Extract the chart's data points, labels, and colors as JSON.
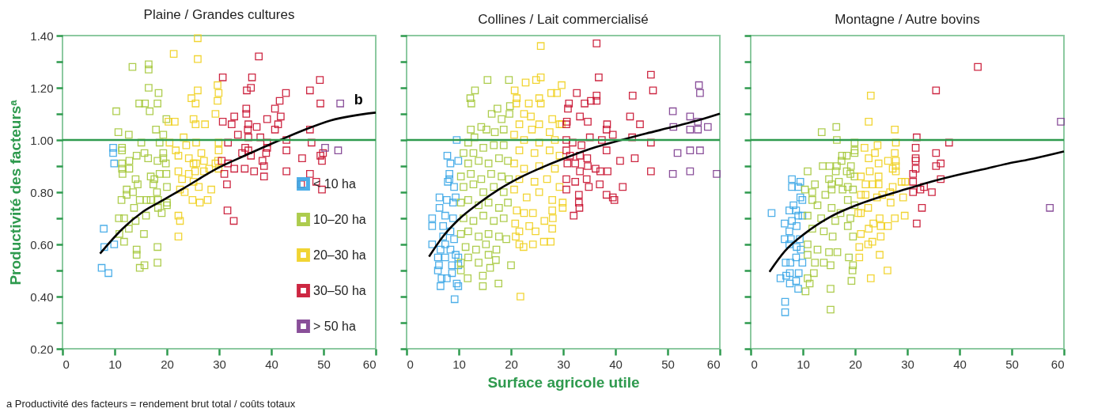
{
  "chart_data": [
    {
      "type": "scatter",
      "title": "Plaine / Grandes cultures",
      "ylabel": "Productivité des facteursᵃ",
      "marker": "square",
      "legend": "bottom right",
      "xlim": [
        0,
        60
      ],
      "xticks": [
        0,
        10,
        20,
        30,
        40,
        50,
        60
      ],
      "ylim": [
        0.2,
        1.4
      ],
      "yticks": [
        {
          "value": 0.2,
          "label": "0.20"
        },
        {
          "value": 0.3,
          "label": null
        },
        {
          "value": 0.4,
          "label": "0.40"
        },
        {
          "value": 0.5,
          "label": null
        },
        {
          "value": 0.6,
          "label": "0.60"
        },
        {
          "value": 0.7,
          "label": null
        },
        {
          "value": 0.8,
          "label": "0.80"
        },
        {
          "value": 0.9,
          "label": null
        },
        {
          "value": 1.0,
          "label": "1.00"
        },
        {
          "value": 1.1,
          "label": null
        },
        {
          "value": 1.2,
          "label": "1.20"
        },
        {
          "value": 1.3,
          "label": null
        },
        {
          "value": 1.4,
          "label": "1.40"
        }
      ],
      "ref_lines": [
        {
          "axis": "y",
          "value": 1.0,
          "color": "#2e9a4e"
        }
      ],
      "annotations": [
        {
          "text": "b",
          "x": 57,
          "y": 1.09
        },
        "a Productivité des facteurs = rendement brut total / coûts totaux"
      ],
      "series": [
        {
          "name": "< 10 ha",
          "color": "#3aa6e6",
          "x": [
            9.7,
            9.7,
            9.9,
            7.9,
            8.0,
            9.9,
            7.5,
            8.8
          ],
          "values": [
            0.97,
            0.95,
            0.91,
            0.66,
            0.59,
            0.6,
            0.51,
            0.49
          ]
        },
        {
          "name": "10–20 ha",
          "color": "#a5c73b",
          "x": [
            10.3,
            10.7,
            12.7,
            13.4,
            16.5,
            16.5,
            16.5,
            18.4,
            14.7,
            15.8,
            16.7,
            18.2,
            11.4,
            11.4,
            15.1,
            12.8,
            14.2,
            15.7,
            16.4,
            11.4,
            11.4,
            11.5,
            12.8,
            12.3,
            12.3,
            11.3,
            11.8,
            10.8,
            10.9,
            11.8,
            13.5,
            14.0,
            14.4,
            14.8,
            13.7,
            14.0,
            12.7,
            14.2,
            14.2,
            14.8,
            15.7,
            15.6,
            16.0,
            16.9,
            17.4,
            18.1,
            18.3,
            19.0,
            18.3,
            18.6,
            18.2,
            17.9,
            18.6,
            19.3,
            19.9,
            19.8,
            19.9,
            20.0,
            20.0,
            20.0,
            18.2,
            18.2,
            16.1,
            16.9,
            17.6,
            19.3,
            19.3
          ],
          "values": [
            1.11,
            1.03,
            1.02,
            1.28,
            1.29,
            1.27,
            1.2,
            1.18,
            1.14,
            1.14,
            1.11,
            1.14,
            0.97,
            0.96,
            0.99,
            0.92,
            0.94,
            0.95,
            0.93,
            0.91,
            0.89,
            0.87,
            0.89,
            0.81,
            0.79,
            0.77,
            0.7,
            0.7,
            0.64,
            0.61,
            0.8,
            0.85,
            0.83,
            0.77,
            0.74,
            0.69,
            0.66,
            0.58,
            0.56,
            0.51,
            0.52,
            0.64,
            0.71,
            0.86,
            0.83,
            0.8,
            0.77,
            0.72,
            0.74,
            0.87,
            0.92,
            1.04,
            0.99,
            1.02,
            1.08,
            0.91,
            0.87,
            0.82,
            0.76,
            0.75,
            0.59,
            0.53,
            0.77,
            0.77,
            0.85,
            0.95,
            0.93
          ]
        },
        {
          "name": "20–30 ha",
          "color": "#f0d01e",
          "x": [
            25.9,
            25.9,
            21.3,
            29.7,
            29.9,
            29.7,
            25.9,
            24.7,
            25.5,
            29.3,
            25.1,
            25.5,
            27.3,
            20.3,
            21.5,
            20.5,
            21.7,
            22.2,
            23.2,
            23.7,
            25.6,
            26.6,
            24.2,
            25.1,
            27.1,
            28.1,
            29.9,
            29.9,
            29.8,
            29.9,
            22.2,
            22.9,
            24.2,
            25.1,
            26.1,
            23.4,
            22.5,
            24.9,
            26.3,
            27.8,
            28.5,
            22.2,
            22.5,
            22.2,
            27.1,
            25.4,
            25.6,
            29.3
          ],
          "values": [
            1.39,
            1.31,
            1.33,
            1.21,
            1.18,
            1.15,
            1.19,
            1.16,
            1.14,
            1.1,
            1.08,
            1.06,
            1.06,
            1.07,
            1.07,
            0.99,
            0.96,
            0.94,
            1.01,
            0.98,
            0.99,
            0.95,
            0.93,
            0.91,
            0.92,
            0.89,
            0.99,
            0.96,
            0.92,
            0.89,
            0.88,
            0.85,
            0.87,
            0.84,
            0.82,
            0.8,
            0.81,
            0.77,
            0.76,
            0.77,
            0.81,
            0.71,
            0.69,
            0.63,
            0.88,
            0.88,
            0.91,
            0.91
          ]
        },
        {
          "name": "30–50 ha",
          "color": "#c8102e",
          "x": [
            37.6,
            30.7,
            36.3,
            36.1,
            35.3,
            42.8,
            41.6,
            40.7,
            41.8,
            47.4,
            49.3,
            49.4,
            35.2,
            35.2,
            32.9,
            30.7,
            32.4,
            35.6,
            37.2,
            39.2,
            41.3,
            40.7,
            33.6,
            35.5,
            35.6,
            37.9,
            31.7,
            39.2,
            42.9,
            47.4,
            47.7,
            35.0,
            35.6,
            42.9,
            39.2,
            34.4,
            36.1,
            39.0,
            45.9,
            49.4,
            49.7,
            49.9,
            30.5,
            31.7,
            32.9,
            34.9,
            36.7,
            38.3,
            38.6,
            38.6,
            31.0,
            31.5,
            42.9,
            45.7,
            47.4,
            48.6,
            49.7,
            31.6,
            32.8
          ],
          "values": [
            1.32,
            1.24,
            1.24,
            1.2,
            1.19,
            1.18,
            1.15,
            1.12,
            1.09,
            1.19,
            1.23,
            1.14,
            1.12,
            1.1,
            1.09,
            1.07,
            1.06,
            1.06,
            1.05,
            1.08,
            1.06,
            1.04,
            1.02,
            1.04,
            1.01,
            1.01,
            0.99,
            0.99,
            1.0,
            1.04,
            0.99,
            0.97,
            0.96,
            0.96,
            0.97,
            0.95,
            0.94,
            0.95,
            0.93,
            0.94,
            0.92,
            0.95,
            0.92,
            0.91,
            0.89,
            0.89,
            0.88,
            0.92,
            0.9,
            0.86,
            0.87,
            0.83,
            0.88,
            0.83,
            0.87,
            0.84,
            0.81,
            0.73,
            0.69
          ]
        },
        {
          "name": "> 50 ha",
          "color": "#7d3c8f",
          "x": [
            53.2,
            50.3,
            52.8
          ],
          "values": [
            1.14,
            0.97,
            0.96
          ]
        },
        {
          "type": "line",
          "marker": "none",
          "color": "#000000",
          "x": [
            7.2,
            11.5,
            15.4,
            19.3,
            23.2,
            30.0,
            34.9,
            41.7,
            46.5,
            51.4,
            60
          ],
          "values": [
            0.565,
            0.66,
            0.725,
            0.77,
            0.815,
            0.895,
            0.94,
            1.0,
            1.04,
            1.075,
            1.105
          ]
        }
      ]
    },
    {
      "type": "scatter",
      "title": "Collines / Lait commercialisé",
      "xlabel": "Surface agricole utile",
      "marker": "square",
      "tick_labels": "x",
      "xlim": [
        0,
        60
      ],
      "xticks": [
        0,
        10,
        20,
        30,
        40,
        50,
        60
      ],
      "ylim": [
        0.2,
        1.4
      ],
      "yticks": [
        0.2,
        0.3,
        0.4,
        0.5,
        0.6,
        0.7,
        0.8,
        0.9,
        1.0,
        1.1,
        1.2,
        1.3,
        1.4
      ],
      "ref_lines": [
        {
          "axis": "y",
          "value": 1.0,
          "color": "#2e9a4e"
        }
      ],
      "series": [
        {
          "color": "#3aa6e6",
          "x": [
            9.6,
            7.8,
            8.4,
            9.9,
            8.2,
            7.9,
            9.1,
            6.3,
            7.7,
            8.9,
            6.3,
            7.4,
            4.9,
            4.9,
            7.0,
            8.4,
            9.1,
            4.9,
            7.4,
            6.5,
            8.4,
            9.4,
            6.0,
            7.4,
            9.9,
            6.2,
            6.0,
            8.7,
            9.9,
            8.7,
            6.7,
            7.7,
            6.5,
            9.6,
            9.9,
            9.2,
            8.9,
            7.0,
            9.4,
            8.2
          ],
          "values": [
            1.0,
            0.94,
            0.91,
            0.92,
            0.87,
            0.84,
            0.82,
            0.78,
            0.77,
            0.76,
            0.74,
            0.71,
            0.7,
            0.67,
            0.67,
            0.65,
            0.62,
            0.6,
            0.6,
            0.58,
            0.58,
            0.56,
            0.55,
            0.55,
            0.55,
            0.52,
            0.5,
            0.52,
            0.52,
            0.49,
            0.47,
            0.47,
            0.44,
            0.45,
            0.44,
            0.39,
            0.7,
            0.63,
            0.78,
            0.85
          ]
        },
        {
          "color": "#a5c73b",
          "x": [
            15.5,
            19.6,
            13.1,
            12.2,
            12.4,
            17.4,
            16.3,
            19.8,
            19.7,
            18.2,
            14.3,
            12.3,
            15.3,
            16.9,
            18.6,
            13.0,
            11.8,
            10.9,
            12.8,
            14.7,
            16.7,
            18.6,
            11.8,
            13.8,
            15.7,
            17.7,
            19.4,
            10.4,
            12.3,
            14.3,
            16.2,
            18.2,
            19.6,
            10.9,
            12.8,
            14.7,
            16.7,
            18.6,
            10.4,
            11.8,
            13.8,
            15.7,
            17.7,
            19.4,
            10.9,
            12.8,
            14.7,
            16.7,
            18.6,
            10.4,
            11.8,
            13.8,
            15.7,
            17.7,
            19.1,
            11.3,
            13.3,
            15.2,
            17.2,
            11.8,
            13.8,
            15.7,
            17.1,
            10.4,
            11.7,
            14.6,
            14.6,
            17.6,
            20.0,
            16.0,
            10.4
          ],
          "values": [
            1.23,
            1.23,
            1.19,
            1.16,
            1.14,
            1.12,
            1.1,
            1.13,
            1.1,
            1.08,
            1.05,
            1.04,
            1.04,
            1.03,
            1.04,
            1.01,
            0.99,
            0.95,
            0.95,
            0.97,
            0.98,
            0.98,
            0.91,
            0.92,
            0.91,
            0.93,
            0.92,
            0.86,
            0.87,
            0.85,
            0.87,
            0.86,
            0.85,
            0.82,
            0.83,
            0.8,
            0.82,
            0.8,
            0.76,
            0.77,
            0.75,
            0.76,
            0.74,
            0.76,
            0.7,
            0.69,
            0.71,
            0.69,
            0.7,
            0.64,
            0.65,
            0.63,
            0.64,
            0.63,
            0.62,
            0.59,
            0.58,
            0.6,
            0.58,
            0.55,
            0.53,
            0.56,
            0.54,
            0.53,
            0.47,
            0.48,
            0.44,
            0.45,
            0.52,
            0.51,
            0.5
          ]
        },
        {
          "color": "#f0d01e",
          "x": [
            25.7,
            25.7,
            24.8,
            22.8,
            29.7,
            20.7,
            27.7,
            28.8,
            21.1,
            25.4,
            23.4,
            25.7,
            21.0,
            22.5,
            23.8,
            27.9,
            29.3,
            21.6,
            25.4,
            24.0,
            27.4,
            20.6,
            22.5,
            25.4,
            28.4,
            21.6,
            24.5,
            27.4,
            29.3,
            20.6,
            22.5,
            25.4,
            28.4,
            21.6,
            24.5,
            26.9,
            29.3,
            20.6,
            23.0,
            25.4,
            27.9,
            29.9,
            21.1,
            22.5,
            24.2,
            27.9,
            20.8,
            23.5,
            26.4,
            28.0,
            21.6,
            24.7,
            27.9,
            20.9,
            26.3,
            27.6,
            24.2,
            21.6,
            22.4,
            21.8,
            29.9,
            29.7
          ],
          "values": [
            1.36,
            1.24,
            1.23,
            1.22,
            1.21,
            1.19,
            1.18,
            1.18,
            1.16,
            1.16,
            1.14,
            1.14,
            1.14,
            1.1,
            1.09,
            1.08,
            1.06,
            1.06,
            1.06,
            1.04,
            1.03,
            1.02,
            1.0,
            0.99,
            1.0,
            0.96,
            0.95,
            0.96,
            0.94,
            0.91,
            0.89,
            0.9,
            0.89,
            0.85,
            0.84,
            0.85,
            0.82,
            0.81,
            0.78,
            0.8,
            0.77,
            0.74,
            0.73,
            0.72,
            0.72,
            0.73,
            0.68,
            0.67,
            0.69,
            0.7,
            0.65,
            0.65,
            0.66,
            0.63,
            0.61,
            0.61,
            0.6,
            0.6,
            0.59,
            0.4,
            0.76,
            1.06
          ]
        },
        {
          "color": "#c8102e",
          "x": [
            36.4,
            36.8,
            46.8,
            47.2,
            32.6,
            31.1,
            30.9,
            34.1,
            35.3,
            36.4,
            36.4,
            43.3,
            33.2,
            34.7,
            38.4,
            42.8,
            44.7,
            30.7,
            30.6,
            38.3,
            39.5,
            43.2,
            30.6,
            35.1,
            37.4,
            31.8,
            33.5,
            46.8,
            38.3,
            30.6,
            31.3,
            33.2,
            34.6,
            43.7,
            40.9,
            30.8,
            32.3,
            34.7,
            36.2,
            37.1,
            38.5,
            46.8,
            33.2,
            30.6,
            32.3,
            34.5,
            37.0,
            41.4,
            34.9,
            30.6,
            33.0,
            38.3,
            39.5,
            39.8,
            33.0,
            33.1,
            32.0
          ],
          "values": [
            1.37,
            1.24,
            1.25,
            1.19,
            1.18,
            1.14,
            1.12,
            1.14,
            1.15,
            1.17,
            1.15,
            1.17,
            1.09,
            1.07,
            1.06,
            1.09,
            1.06,
            1.07,
            1.06,
            1.04,
            1.02,
            1.01,
            1.0,
            1.01,
            1.0,
            0.99,
            0.98,
            0.99,
            0.96,
            0.96,
            0.94,
            0.94,
            0.93,
            0.93,
            0.92,
            0.91,
            0.91,
            0.9,
            0.89,
            0.88,
            0.88,
            0.88,
            0.88,
            0.85,
            0.84,
            0.85,
            0.83,
            0.82,
            0.82,
            0.81,
            0.79,
            0.79,
            0.78,
            0.77,
            0.76,
            0.74,
            0.71
          ]
        },
        {
          "color": "#7d3c8f",
          "x": [
            56.0,
            56.2,
            51.0,
            54.3,
            51.1,
            55.8,
            55.8,
            57.7,
            54.3,
            51.9,
            54.3,
            56.2,
            51.0,
            54.3,
            59.4
          ],
          "values": [
            1.21,
            1.18,
            1.11,
            1.09,
            1.05,
            1.07,
            1.04,
            1.05,
            1.04,
            0.95,
            0.96,
            0.96,
            0.87,
            0.88,
            0.87
          ]
        },
        {
          "type": "line",
          "marker": "none",
          "color": "#000000",
          "x": [
            4.3,
            7.0,
            9.9,
            13.8,
            17.7,
            21.6,
            26.4,
            31.3,
            36.1,
            41.0,
            45.9,
            50.8,
            55.6,
            60
          ],
          "values": [
            0.553,
            0.631,
            0.694,
            0.757,
            0.811,
            0.855,
            0.899,
            0.938,
            0.972,
            0.999,
            1.025,
            1.049,
            1.074,
            1.101
          ]
        }
      ]
    },
    {
      "type": "scatter",
      "title": "Montagne / Autre bovins",
      "marker": "square",
      "tick_labels": "x",
      "xlim": [
        0,
        60
      ],
      "xticks": [
        0,
        10,
        20,
        30,
        40,
        50,
        60
      ],
      "ylim": [
        0.2,
        1.4
      ],
      "yticks": [
        0.2,
        0.3,
        0.4,
        0.5,
        0.6,
        0.7,
        0.8,
        0.9,
        1.0,
        1.1,
        1.2,
        1.3,
        1.4
      ],
      "ref_lines": [
        {
          "axis": "y",
          "value": 1.0,
          "color": "#2e9a4e"
        }
      ],
      "series": [
        {
          "color": "#3aa6e6",
          "x": [
            4.0,
            7.9,
            9.5,
            7.9,
            9.1,
            9.5,
            9.9,
            8.2,
            8.7,
            7.4,
            9.1,
            9.9,
            6.5,
            7.9,
            8.8,
            7.4,
            6.5,
            7.7,
            9.4,
            7.4,
            8.8,
            9.6,
            8.7,
            6.7,
            7.6,
            9.9,
            9.2,
            7.5,
            5.7,
            6.8,
            8.7,
            7.5,
            9.1,
            6.6,
            6.6
          ],
          "values": [
            0.72,
            0.85,
            0.84,
            0.82,
            0.82,
            0.78,
            0.77,
            0.75,
            0.73,
            0.73,
            0.71,
            0.71,
            0.68,
            0.69,
            0.67,
            0.65,
            0.62,
            0.62,
            0.62,
            0.6,
            0.59,
            0.58,
            0.55,
            0.53,
            0.53,
            0.53,
            0.49,
            0.49,
            0.47,
            0.48,
            0.46,
            0.45,
            0.43,
            0.38,
            0.34
          ]
        },
        {
          "color": "#a5c73b",
          "x": [
            13.6,
            16.4,
            16.5,
            19.9,
            19.9,
            19.9,
            18.4,
            17.5,
            17.4,
            13.8,
            15.1,
            16.5,
            19.2,
            10.9,
            16.3,
            18.4,
            19.1,
            15.0,
            19.9,
            12.3,
            15.5,
            16.9,
            18.6,
            10.4,
            11.8,
            15.5,
            17.6,
            19.6,
            14.3,
            18.6,
            11.8,
            19.9,
            12.8,
            15.5,
            17.2,
            10.9,
            13.5,
            16.2,
            19.1,
            11.8,
            14.0,
            15.7,
            18.6,
            19.6,
            10.9,
            12.8,
            15.0,
            16.6,
            18.8,
            10.9,
            14.0,
            12.3,
            15.3,
            19.6,
            19.5,
            12.1,
            10.9,
            11.3,
            19.3,
            10.5,
            15.3,
            15.3
          ],
          "values": [
            1.03,
            1.05,
            1.0,
            0.99,
            0.96,
            0.95,
            0.94,
            0.94,
            0.92,
            0.9,
            0.9,
            0.9,
            0.9,
            0.88,
            0.88,
            0.88,
            0.87,
            0.85,
            0.86,
            0.83,
            0.83,
            0.84,
            0.82,
            0.81,
            0.8,
            0.81,
            0.81,
            0.81,
            0.79,
            0.77,
            0.77,
            0.75,
            0.75,
            0.74,
            0.72,
            0.71,
            0.7,
            0.69,
            0.7,
            0.66,
            0.65,
            0.63,
            0.67,
            0.63,
            0.6,
            0.58,
            0.57,
            0.57,
            0.55,
            0.56,
            0.53,
            0.53,
            0.52,
            0.52,
            0.5,
            0.49,
            0.47,
            0.45,
            0.46,
            0.42,
            0.43,
            0.35
          ]
        },
        {
          "color": "#f0d01e",
          "x": [
            23.0,
            22.6,
            27.6,
            27.8,
            24.3,
            21.8,
            23.8,
            27.6,
            22.6,
            27.8,
            24.5,
            26.3,
            27.8,
            22.8,
            27.2,
            27.8,
            21.1,
            24.5,
            22.0,
            23.4,
            24.5,
            28.9,
            29.6,
            27.2,
            25.2,
            26.7,
            21.1,
            22.0,
            29.2,
            24.2,
            26.8,
            22.5,
            21.1,
            20.6,
            29.5,
            27.6,
            24.7,
            23.5,
            24.9,
            26.3,
            22.6,
            21.1,
            24.9,
            23.3,
            22.5,
            20.8,
            24.7,
            20.8,
            26.2,
            23.0
          ],
          "values": [
            1.17,
            1.07,
            1.04,
            0.99,
            0.98,
            0.97,
            0.95,
            0.95,
            0.93,
            0.92,
            0.91,
            0.92,
            0.9,
            0.88,
            0.89,
            0.88,
            0.86,
            0.86,
            0.83,
            0.83,
            0.83,
            0.84,
            0.84,
            0.82,
            0.79,
            0.8,
            0.79,
            0.79,
            0.78,
            0.78,
            0.76,
            0.74,
            0.72,
            0.72,
            0.71,
            0.7,
            0.7,
            0.68,
            0.67,
            0.67,
            0.66,
            0.64,
            0.63,
            0.61,
            0.6,
            0.59,
            0.56,
            0.55,
            0.5,
            0.47
          ]
        },
        {
          "color": "#c8102e",
          "x": [
            43.5,
            35.5,
            31.8,
            38.0,
            31.6,
            35.5,
            31.6,
            31.6,
            31.6,
            35.5,
            36.4,
            31.1,
            31.1,
            36.4,
            33.2,
            32.5,
            31.1,
            34.7,
            32.8,
            31.8
          ],
          "values": [
            1.28,
            1.19,
            1.01,
            0.99,
            0.97,
            0.95,
            0.93,
            0.92,
            0.89,
            0.9,
            0.91,
            0.87,
            0.84,
            0.85,
            0.82,
            0.81,
            0.8,
            0.8,
            0.74,
            0.68
          ]
        },
        {
          "color": "#7d3c8f",
          "x": [
            59.4,
            57.3
          ],
          "values": [
            1.07,
            0.74
          ]
        },
        {
          "type": "line",
          "marker": "none",
          "color": "#000000",
          "x": [
            3.6,
            6.5,
            10.4,
            15.2,
            20.1,
            25.0,
            29.8,
            34.7,
            39.6,
            44.4,
            49.3,
            54.2,
            60.0
          ],
          "values": [
            0.495,
            0.573,
            0.642,
            0.705,
            0.749,
            0.783,
            0.812,
            0.841,
            0.866,
            0.887,
            0.91,
            0.929,
            0.956
          ]
        }
      ]
    }
  ]
}
